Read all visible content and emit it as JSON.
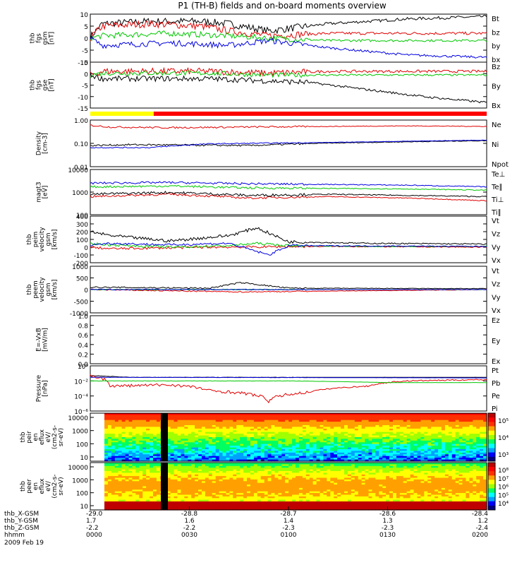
{
  "title": "P1 (TH-B) fields and on-board moments overview",
  "colors": {
    "black": "#000000",
    "red": "#e00000",
    "green": "#00c800",
    "blue": "#0000e0",
    "yellow": "#ffff00",
    "bar_red": "#ff0000"
  },
  "chart_data": [
    {
      "id": "fgs-gsm",
      "type": "line",
      "ylabel": [
        "thb",
        "fgs",
        "gsm",
        "[nT]"
      ],
      "yticks": [
        "10",
        "5",
        "0",
        "-5",
        "-10"
      ],
      "ylim": [
        -10,
        10
      ],
      "scale": "linear",
      "series": [
        {
          "name": "Bt",
          "color": "black",
          "points": [
            [
              0,
              0.5
            ],
            [
              0.03,
              6
            ],
            [
              0.15,
              7
            ],
            [
              0.28,
              7
            ],
            [
              0.35,
              6
            ],
            [
              0.45,
              3
            ],
            [
              0.6,
              6
            ],
            [
              0.8,
              8
            ],
            [
              1,
              9
            ]
          ],
          "noise": 1.5
        },
        {
          "name": "bz",
          "color": "red",
          "points": [
            [
              0,
              0
            ],
            [
              0.03,
              5
            ],
            [
              0.15,
              6
            ],
            [
              0.28,
              5
            ],
            [
              0.35,
              3
            ],
            [
              0.45,
              1
            ],
            [
              0.6,
              2
            ],
            [
              1,
              2
            ]
          ],
          "noise": 1.5
        },
        {
          "name": "by",
          "color": "green",
          "points": [
            [
              0,
              0
            ],
            [
              0.03,
              1
            ],
            [
              0.2,
              2
            ],
            [
              0.35,
              1
            ],
            [
              0.45,
              0
            ],
            [
              0.6,
              -1
            ],
            [
              0.8,
              -1
            ],
            [
              1,
              -1
            ]
          ],
          "noise": 1.2
        },
        {
          "name": "bx",
          "color": "blue",
          "points": [
            [
              0,
              0
            ],
            [
              0.03,
              -3
            ],
            [
              0.2,
              -2
            ],
            [
              0.35,
              -3
            ],
            [
              0.45,
              -1
            ],
            [
              0.6,
              -4
            ],
            [
              0.8,
              -7
            ],
            [
              1,
              -8
            ]
          ],
          "noise": 1.2
        }
      ]
    },
    {
      "id": "fgs-gse",
      "type": "line",
      "ylabel": [
        "thb",
        "fgs",
        "gse",
        "[nT]"
      ],
      "yticks": [
        "5",
        "0",
        "-5",
        "-10",
        "-15"
      ],
      "ylim": [
        -18,
        7
      ],
      "scale": "linear",
      "series": [
        {
          "name": "Bz",
          "color": "red",
          "points": [
            [
              0,
              0
            ],
            [
              0.03,
              2
            ],
            [
              0.3,
              2
            ],
            [
              0.45,
              1
            ],
            [
              0.6,
              2
            ],
            [
              1,
              2
            ]
          ],
          "noise": 1.8
        },
        {
          "name": "By",
          "color": "green",
          "points": [
            [
              0,
              0
            ],
            [
              0.03,
              1
            ],
            [
              0.3,
              1
            ],
            [
              0.45,
              0
            ],
            [
              0.6,
              0
            ],
            [
              1,
              0
            ]
          ],
          "noise": 1.3
        },
        {
          "name": "Bx",
          "color": "black",
          "points": [
            [
              0,
              0
            ],
            [
              0.03,
              -2
            ],
            [
              0.3,
              -2
            ],
            [
              0.42,
              -3
            ],
            [
              0.55,
              -4
            ],
            [
              0.7,
              -8
            ],
            [
              0.85,
              -12
            ],
            [
              1,
              -15
            ]
          ],
          "noise": 1.5
        }
      ]
    },
    {
      "id": "density",
      "type": "line",
      "ylabel": [
        "Density",
        "[cm-3]"
      ],
      "yticks": [
        "1.00",
        "0.10",
        "0.01"
      ],
      "ylim": [
        0.01,
        1.6
      ],
      "scale": "log",
      "series": [
        {
          "name": "Ne",
          "color": "red",
          "points": [
            [
              0,
              0.9
            ],
            [
              0.05,
              0.75
            ],
            [
              0.2,
              0.7
            ],
            [
              0.4,
              0.75
            ],
            [
              0.6,
              0.8
            ],
            [
              0.8,
              0.85
            ],
            [
              1,
              0.8
            ]
          ],
          "noise": 0.08
        },
        {
          "name": "Ni",
          "color": "black",
          "points": [
            [
              0,
              0.1
            ],
            [
              0.1,
              0.11
            ],
            [
              0.4,
              0.1
            ],
            [
              0.6,
              0.13
            ],
            [
              0.8,
              0.15
            ],
            [
              1,
              0.17
            ]
          ],
          "noise": 0.08
        },
        {
          "name": "Npot",
          "color": "blue",
          "points": [
            [
              0,
              0.08
            ],
            [
              0.15,
              0.08
            ],
            [
              0.3,
              0.12
            ],
            [
              0.6,
              0.14
            ],
            [
              0.8,
              0.16
            ],
            [
              1,
              0.18
            ]
          ],
          "noise": 0.05
        }
      ]
    },
    {
      "id": "temperature",
      "type": "line",
      "ylabel": [
        "magt3",
        "[eV]"
      ],
      "yticks": [
        "10000",
        "1000",
        "100"
      ],
      "ylim": [
        100,
        13000
      ],
      "scale": "log",
      "series": [
        {
          "name": "Te⊥",
          "color": "red",
          "points": [
            [
              0,
              700
            ],
            [
              0.2,
              900
            ],
            [
              0.4,
              600
            ],
            [
              0.6,
              700
            ],
            [
              0.8,
              600
            ],
            [
              1,
              450
            ]
          ],
          "noise": 0.1
        },
        {
          "name": "Te∥",
          "color": "black",
          "points": [
            [
              0,
              900
            ],
            [
              0.2,
              1100
            ],
            [
              0.4,
              800
            ],
            [
              0.6,
              900
            ],
            [
              0.8,
              800
            ],
            [
              1,
              700
            ]
          ],
          "noise": 0.12
        },
        {
          "name": "Ti⊥",
          "color": "blue",
          "points": [
            [
              0,
              3000
            ],
            [
              0.2,
              3200
            ],
            [
              0.4,
              2800
            ],
            [
              0.6,
              2600
            ],
            [
              0.8,
              2400
            ],
            [
              1,
              2000
            ]
          ],
          "noise": 0.1
        },
        {
          "name": "Ti∥",
          "color": "green",
          "points": [
            [
              0,
              2000
            ],
            [
              0.2,
              2200
            ],
            [
              0.4,
              1800
            ],
            [
              0.6,
              1700
            ],
            [
              0.8,
              1600
            ],
            [
              1,
              1400
            ]
          ],
          "noise": 0.1
        }
      ]
    },
    {
      "id": "peim-velocity",
      "type": "line",
      "ylabel": [
        "thb",
        "peim",
        "velocity",
        "gsm",
        "[km/s]"
      ],
      "yticks": [
        "400",
        "300",
        "200",
        "100",
        "0",
        "-100",
        "-200"
      ],
      "ylim": [
        -200,
        400
      ],
      "scale": "linear",
      "series": [
        {
          "name": "Vt",
          "color": "black",
          "points": [
            [
              0,
              200
            ],
            [
              0.05,
              150
            ],
            [
              0.2,
              80
            ],
            [
              0.35,
              150
            ],
            [
              0.42,
              250
            ],
            [
              0.5,
              70
            ],
            [
              0.7,
              50
            ],
            [
              1,
              40
            ]
          ],
          "noise": 20
        },
        {
          "name": "Vz",
          "color": "red",
          "points": [
            [
              0,
              0
            ],
            [
              0.05,
              -20
            ],
            [
              0.3,
              0
            ],
            [
              0.6,
              10
            ],
            [
              1,
              0
            ]
          ],
          "noise": 15
        },
        {
          "name": "Vy",
          "color": "green",
          "points": [
            [
              0,
              50
            ],
            [
              0.05,
              30
            ],
            [
              0.2,
              0
            ],
            [
              0.35,
              20
            ],
            [
              0.42,
              50
            ],
            [
              0.5,
              20
            ],
            [
              0.7,
              10
            ],
            [
              1,
              10
            ]
          ],
          "noise": 15
        },
        {
          "name": "Vx",
          "color": "blue",
          "points": [
            [
              0,
              30
            ],
            [
              0.05,
              50
            ],
            [
              0.2,
              30
            ],
            [
              0.35,
              50
            ],
            [
              0.45,
              -100
            ],
            [
              0.5,
              20
            ],
            [
              1,
              10
            ]
          ],
          "noise": 15
        }
      ]
    },
    {
      "id": "peem-velocity",
      "type": "line",
      "ylabel": [
        "thb",
        "peem",
        "velocity",
        "gsm",
        "[km/s]"
      ],
      "yticks": [
        "1000",
        "500",
        "0",
        "-500",
        "-1000"
      ],
      "ylim": [
        -1000,
        1000
      ],
      "scale": "linear",
      "series": [
        {
          "name": "Vt",
          "color": "black",
          "points": [
            [
              0,
              100
            ],
            [
              0.3,
              60
            ],
            [
              0.38,
              300
            ],
            [
              0.5,
              60
            ],
            [
              1,
              40
            ]
          ],
          "noise": 30
        },
        {
          "name": "Vz",
          "color": "red",
          "points": [
            [
              0,
              0
            ],
            [
              0.38,
              -100
            ],
            [
              1,
              0
            ]
          ],
          "noise": 25
        },
        {
          "name": "Vy",
          "color": "green",
          "points": [
            [
              0,
              0
            ],
            [
              1,
              0
            ]
          ],
          "noise": 20
        },
        {
          "name": "Vx",
          "color": "blue",
          "points": [
            [
              0,
              0
            ],
            [
              1,
              0
            ]
          ],
          "noise": 20
        }
      ]
    },
    {
      "id": "efield",
      "type": "line",
      "ylabel": [
        "E=-VxB",
        "[mV/m]"
      ],
      "yticks": [
        "1.0",
        "0.8",
        "0.6",
        "0.4",
        "0.2",
        "0.0"
      ],
      "ylim": [
        0,
        1
      ],
      "scale": "linear",
      "series": [
        {
          "name": "Ez",
          "color": "red",
          "points": [],
          "noise": 0
        },
        {
          "name": "Ey",
          "color": "green",
          "points": [],
          "noise": 0
        },
        {
          "name": "Ex",
          "color": "blue",
          "points": [],
          "noise": 0
        }
      ]
    },
    {
      "id": "pressure",
      "type": "line",
      "ylabel": [
        "Pressure",
        "[nPa]"
      ],
      "yticks": [
        "10⁰",
        "10⁻²",
        "10⁻⁴",
        "10⁻⁶"
      ],
      "ylim": [
        1e-06,
        1
      ],
      "scale": "log",
      "series": [
        {
          "name": "Pt",
          "color": "black",
          "points": [
            [
              0,
              0.05
            ],
            [
              0.1,
              0.03
            ],
            [
              0.5,
              0.03
            ],
            [
              1,
              0.03
            ]
          ],
          "noise": 0.05
        },
        {
          "name": "Pb",
          "color": "red",
          "points": [
            [
              0,
              0.05
            ],
            [
              0.05,
              0.002
            ],
            [
              0.2,
              0.003
            ],
            [
              0.3,
              0.0005
            ],
            [
              0.45,
              2e-05
            ],
            [
              0.55,
              0.0003
            ],
            [
              0.7,
              0.002
            ],
            [
              0.8,
              0.01
            ],
            [
              1,
              0.015
            ]
          ],
          "noise": 0.4
        },
        {
          "name": "Pe",
          "color": "green",
          "points": [
            [
              0,
              0.01
            ],
            [
              0.5,
              0.01
            ],
            [
              0.75,
              0.006
            ],
            [
              1,
              0.006
            ]
          ],
          "noise": 0.05
        },
        {
          "name": "Pi",
          "color": "blue",
          "points": [
            [
              0,
              0.03
            ],
            [
              0.5,
              0.028
            ],
            [
              1,
              0.025
            ]
          ],
          "noise": 0.04
        }
      ]
    },
    {
      "id": "peir-spectrogram",
      "type": "heatmap",
      "ylabel": [
        "thb",
        "peir",
        "en",
        "eflux",
        "eV/",
        "(cm2-s-",
        "sr-eV)"
      ],
      "yticks": [
        "10000",
        "1000",
        "100",
        "10"
      ],
      "scale": "log",
      "colorbar_ticks": [
        "10⁵",
        "10⁴",
        "10³"
      ]
    },
    {
      "id": "peer-spectrogram",
      "type": "heatmap",
      "ylabel": [
        "thb",
        "peer",
        "en",
        "eflux",
        "eV/",
        "(cm2-s-",
        "sr-eV)"
      ],
      "yticks": [
        "10000",
        "1000",
        "100",
        "10"
      ],
      "scale": "log",
      "colorbar_ticks": [
        "10⁸",
        "10⁷",
        "10⁶",
        "10⁵",
        "10⁴"
      ]
    }
  ],
  "status_bar": {
    "segments": [
      {
        "from": 0,
        "to": 0.16,
        "color": "yellow"
      },
      {
        "from": 0.16,
        "to": 1,
        "color": "bar_red"
      }
    ]
  },
  "xaxis": {
    "labels": [
      "thb_X-GSM",
      "thb_Y-GSM",
      "thb_Z-GSM",
      "hhmm",
      "2009 Feb 19"
    ],
    "ticks": [
      {
        "f": 0.0,
        "x": "-29.0",
        "y": "1.7",
        "z": "-2.2",
        "t": "0000"
      },
      {
        "f": 0.25,
        "x": "-28.8",
        "y": "1.6",
        "z": "-2.2",
        "t": "0030"
      },
      {
        "f": 0.5,
        "x": "-28.7",
        "y": "1.4",
        "z": "-2.3",
        "t": "0100"
      },
      {
        "f": 0.75,
        "x": "-28.6",
        "y": "1.3",
        "z": "-2.3",
        "t": "0130"
      },
      {
        "f": 1.0,
        "x": "-28.4",
        "y": "1.2",
        "z": "-2.4",
        "t": "0200"
      }
    ]
  }
}
